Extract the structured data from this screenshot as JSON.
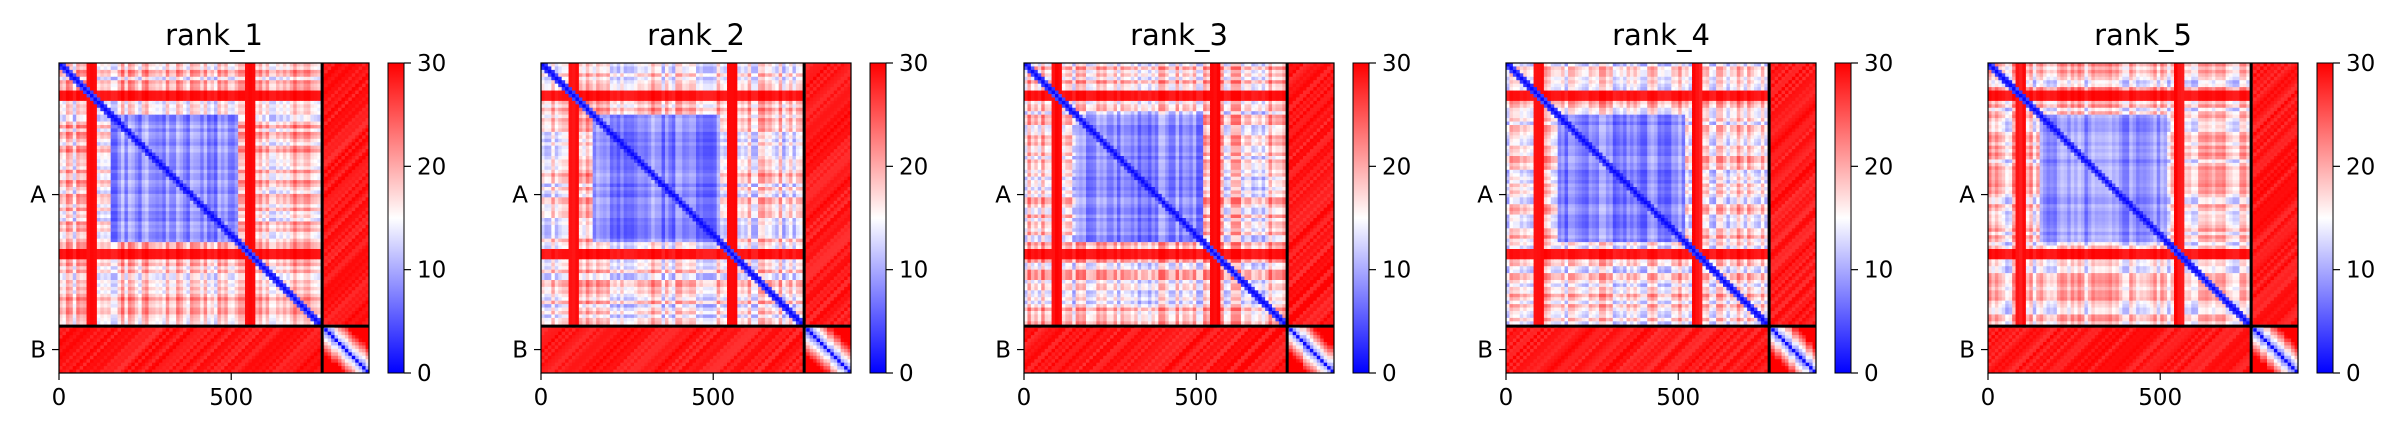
{
  "chart_data": [
    {
      "type": "heatmap",
      "title": "rank_1",
      "xlabel": "",
      "ylabel": "",
      "x_ticks": [
        0,
        500
      ],
      "y_tick_labels": [
        "A",
        "B"
      ],
      "chains": [
        {
          "name": "A",
          "start": 0,
          "end": 764
        },
        {
          "name": "B",
          "start": 764,
          "end": 900
        }
      ],
      "colorbar": {
        "min": 0,
        "max": 30,
        "ticks": [
          0,
          10,
          20,
          30
        ],
        "colormap": "bwr"
      },
      "blue_block_seed": 1
    },
    {
      "type": "heatmap",
      "title": "rank_2",
      "xlabel": "",
      "ylabel": "",
      "x_ticks": [
        0,
        500
      ],
      "y_tick_labels": [
        "A",
        "B"
      ],
      "chains": [
        {
          "name": "A",
          "start": 0,
          "end": 764
        },
        {
          "name": "B",
          "start": 764,
          "end": 900
        }
      ],
      "colorbar": {
        "min": 0,
        "max": 30,
        "ticks": [
          0,
          10,
          20,
          30
        ],
        "colormap": "bwr"
      },
      "blue_block_seed": 2
    },
    {
      "type": "heatmap",
      "title": "rank_3",
      "xlabel": "",
      "ylabel": "",
      "x_ticks": [
        0,
        500
      ],
      "y_tick_labels": [
        "A",
        "B"
      ],
      "chains": [
        {
          "name": "A",
          "start": 0,
          "end": 764
        },
        {
          "name": "B",
          "start": 764,
          "end": 900
        }
      ],
      "colorbar": {
        "min": 0,
        "max": 30,
        "ticks": [
          0,
          10,
          20,
          30
        ],
        "colormap": "bwr"
      },
      "blue_block_seed": 3
    },
    {
      "type": "heatmap",
      "title": "rank_4",
      "xlabel": "",
      "ylabel": "",
      "x_ticks": [
        0,
        500
      ],
      "y_tick_labels": [
        "A",
        "B"
      ],
      "chains": [
        {
          "name": "A",
          "start": 0,
          "end": 764
        },
        {
          "name": "B",
          "start": 764,
          "end": 900
        }
      ],
      "colorbar": {
        "min": 0,
        "max": 30,
        "ticks": [
          0,
          10,
          20,
          30
        ],
        "colormap": "bwr"
      },
      "blue_block_seed": 4
    },
    {
      "type": "heatmap",
      "title": "rank_5",
      "xlabel": "",
      "ylabel": "",
      "x_ticks": [
        0,
        500
      ],
      "y_tick_labels": [
        "A",
        "B"
      ],
      "chains": [
        {
          "name": "A",
          "start": 0,
          "end": 764
        },
        {
          "name": "B",
          "start": 764,
          "end": 900
        }
      ],
      "colorbar": {
        "min": 0,
        "max": 30,
        "ticks": [
          0,
          10,
          20,
          30
        ],
        "colormap": "bwr"
      },
      "blue_block_seed": 5
    }
  ]
}
